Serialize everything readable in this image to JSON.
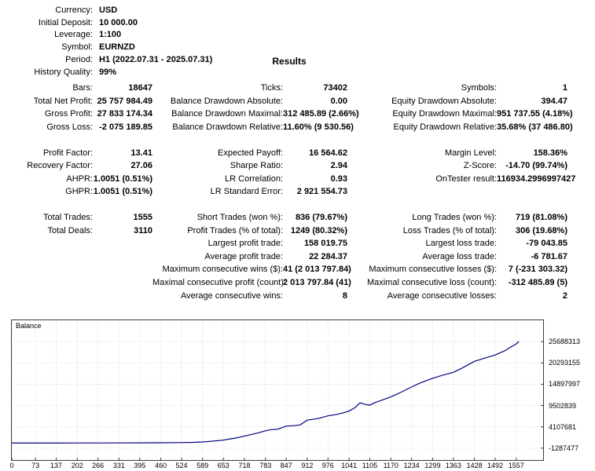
{
  "header": {
    "info": [
      {
        "label": "Currency:",
        "value": "USD"
      },
      {
        "label": "Initial Deposit:",
        "value": "10 000.00"
      },
      {
        "label": "Leverage:",
        "value": "1:100"
      },
      {
        "label": "Symbol:",
        "value": "EURNZD"
      },
      {
        "label": "Period:",
        "value": "H1 (2022.07.31 - 2025.07.31)"
      },
      {
        "label": "History Quality:",
        "value": "99%"
      }
    ],
    "results_title": "Results"
  },
  "stats": {
    "groups": [
      {
        "rows": [
          [
            "Bars:",
            "18647",
            "Ticks:",
            "73402",
            "Symbols:",
            "1"
          ],
          [
            "Total Net Profit:",
            "25 757 984.49",
            "Balance Drawdown Absolute:",
            "0.00",
            "Equity Drawdown Absolute:",
            "394.47"
          ],
          [
            "Gross Profit:",
            "27 833 174.34",
            "Balance Drawdown Maximal:",
            "312 485.89 (2.66%)",
            "Equity Drawdown Maximal:",
            "951 737.55 (4.18%)"
          ],
          [
            "Gross Loss:",
            "-2 075 189.85",
            "Balance Drawdown Relative:",
            "11.60% (9 530.56)",
            "Equity Drawdown Relative:",
            "35.68% (37 486.80)"
          ]
        ]
      },
      {
        "rows": [
          [
            "Profit Factor:",
            "13.41",
            "Expected Payoff:",
            "16 564.62",
            "Margin Level:",
            "158.36%"
          ],
          [
            "Recovery Factor:",
            "27.06",
            "Sharpe Ratio:",
            "2.94",
            "Z-Score:",
            "-14.70 (99.74%)"
          ],
          [
            "AHPR:",
            "1.0051 (0.51%)",
            "LR Correlation:",
            "0.93",
            "OnTester result:",
            "116934.2996997427"
          ],
          [
            "GHPR:",
            "1.0051 (0.51%)",
            "LR Standard Error:",
            "2 921 554.73",
            "",
            ""
          ]
        ]
      },
      {
        "rows": [
          [
            "Total Trades:",
            "1555",
            "Short Trades (won %):",
            "836 (79.67%)",
            "Long Trades (won %):",
            "719 (81.08%)"
          ],
          [
            "Total Deals:",
            "3110",
            "Profit Trades (% of total):",
            "1249 (80.32%)",
            "Loss Trades (% of total):",
            "306 (19.68%)"
          ],
          [
            "",
            "",
            "Largest profit trade:",
            "158 019.75",
            "Largest loss trade:",
            "-79 043.85"
          ],
          [
            "",
            "",
            "Average profit trade:",
            "22 284.37",
            "Average loss trade:",
            "-6 781.67"
          ],
          [
            "",
            "",
            "Maximum consecutive wins ($):",
            "41 (2 013 797.84)",
            "Maximum consecutive losses ($):",
            "7 (-231 303.32)"
          ],
          [
            "",
            "",
            "Maximal consecutive profit (count):",
            "2 013 797.84 (41)",
            "Maximal consecutive loss (count):",
            "-312 485.89 (5)"
          ],
          [
            "",
            "",
            "Average consecutive wins:",
            "8",
            "Average consecutive losses:",
            "2"
          ]
        ]
      }
    ]
  },
  "chart_data": {
    "type": "line",
    "title": "Balance",
    "x_range": [
      0,
      1640
    ],
    "y_range": [
      -4284787,
      31083471
    ],
    "x_ticks": [
      0,
      73,
      137,
      202,
      266,
      331,
      395,
      460,
      524,
      589,
      653,
      718,
      783,
      847,
      912,
      976,
      1041,
      1105,
      1170,
      1234,
      1299,
      1363,
      1428,
      1492,
      1557
    ],
    "y_ticks": [
      25688313,
      20293155,
      14897997,
      9502839,
      4107681,
      -1287477
    ],
    "grid": true,
    "legend_position": "top-left",
    "series": [
      {
        "name": "Balance",
        "color": "#000080",
        "points": [
          [
            0,
            10000
          ],
          [
            60,
            12000
          ],
          [
            130,
            16000
          ],
          [
            200,
            22000
          ],
          [
            270,
            30000
          ],
          [
            340,
            42000
          ],
          [
            400,
            58000
          ],
          [
            460,
            85000
          ],
          [
            520,
            130000
          ],
          [
            560,
            190000
          ],
          [
            589,
            280000
          ],
          [
            610,
            420000
          ],
          [
            630,
            560000
          ],
          [
            653,
            750000
          ],
          [
            670,
            1000000
          ],
          [
            690,
            1250000
          ],
          [
            718,
            1750000
          ],
          [
            740,
            2200000
          ],
          [
            760,
            2600000
          ],
          [
            783,
            3100000
          ],
          [
            800,
            3400000
          ],
          [
            820,
            3500000
          ],
          [
            847,
            4300000
          ],
          [
            870,
            4400000
          ],
          [
            890,
            4600000
          ],
          [
            912,
            5800000
          ],
          [
            930,
            6000000
          ],
          [
            950,
            6300000
          ],
          [
            976,
            6900000
          ],
          [
            1000,
            7200000
          ],
          [
            1020,
            7600000
          ],
          [
            1041,
            8100000
          ],
          [
            1060,
            9000000
          ],
          [
            1075,
            10200000
          ],
          [
            1090,
            9800000
          ],
          [
            1105,
            9600000
          ],
          [
            1120,
            10200000
          ],
          [
            1140,
            10800000
          ],
          [
            1170,
            11700000
          ],
          [
            1200,
            12800000
          ],
          [
            1234,
            14200000
          ],
          [
            1260,
            15200000
          ],
          [
            1299,
            16400000
          ],
          [
            1330,
            17200000
          ],
          [
            1363,
            17900000
          ],
          [
            1390,
            19000000
          ],
          [
            1428,
            20700000
          ],
          [
            1460,
            21500000
          ],
          [
            1492,
            22300000
          ],
          [
            1520,
            23300000
          ],
          [
            1540,
            24300000
          ],
          [
            1557,
            25100000
          ],
          [
            1565,
            25757984
          ]
        ]
      }
    ]
  }
}
